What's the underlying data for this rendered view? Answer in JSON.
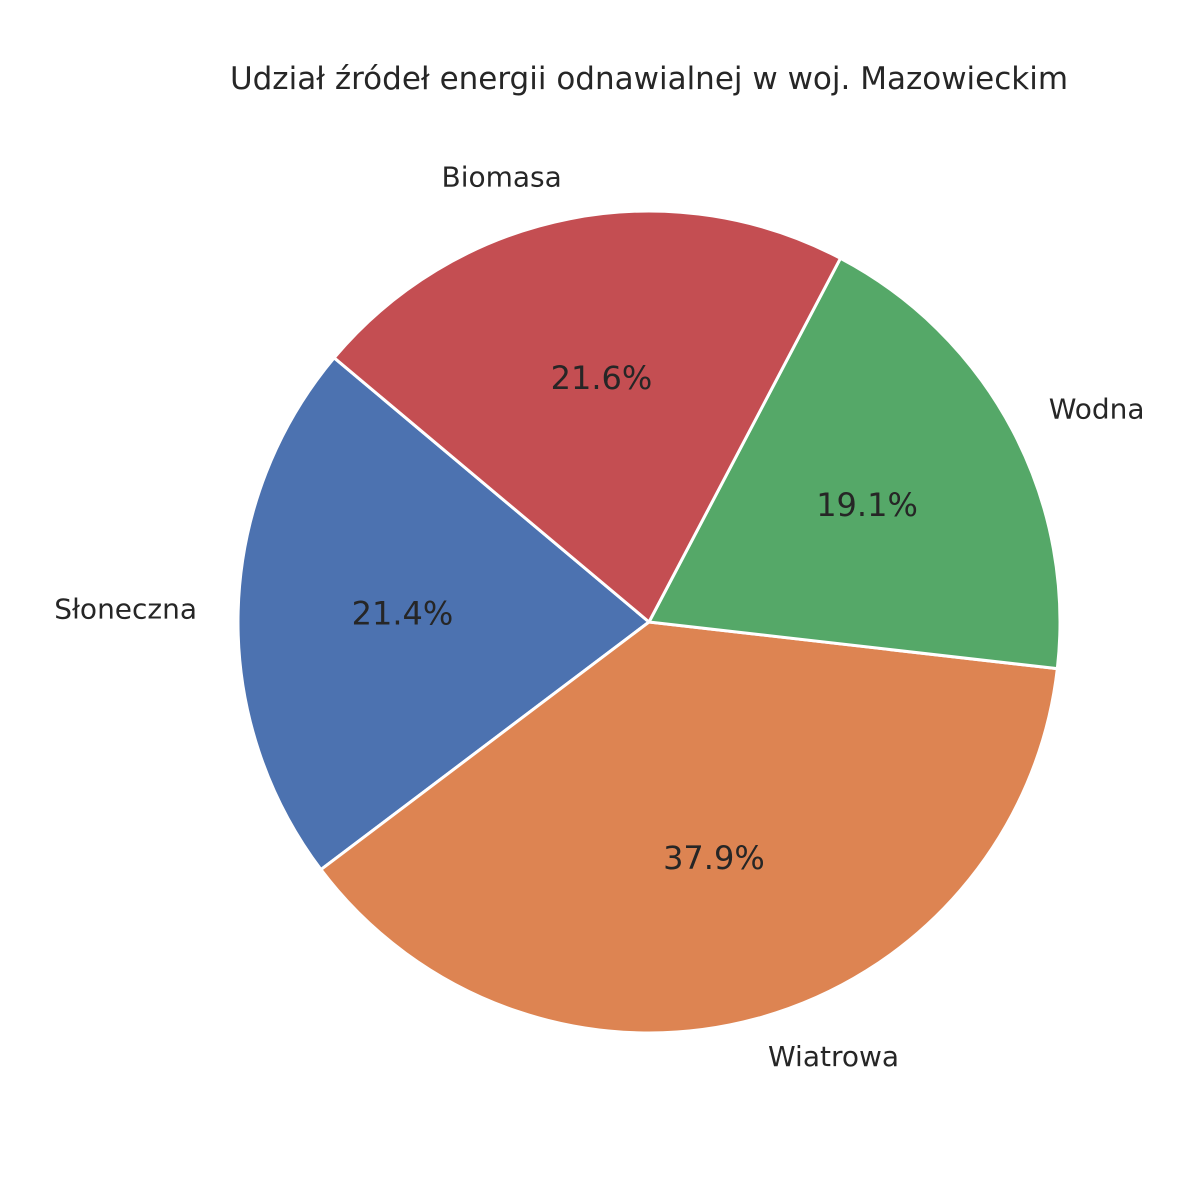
{
  "chart_data": {
    "type": "pie",
    "title": "Udział źródeł energii odnawialnej w woj. Mazowieckim",
    "slices": [
      {
        "name": "Słoneczna",
        "value": 21.4,
        "pct_label": "21.4%",
        "color": "#4c72b0"
      },
      {
        "name": "Wiatrowa",
        "value": 37.9,
        "pct_label": "37.9%",
        "color": "#dd8452"
      },
      {
        "name": "Wodna",
        "value": 19.1,
        "pct_label": "19.1%",
        "color": "#55a868"
      },
      {
        "name": "Biomasa",
        "value": 21.6,
        "pct_label": "21.6%",
        "color": "#c44e52"
      }
    ],
    "start_angle_deg": 140,
    "direction": "counterclockwise"
  }
}
